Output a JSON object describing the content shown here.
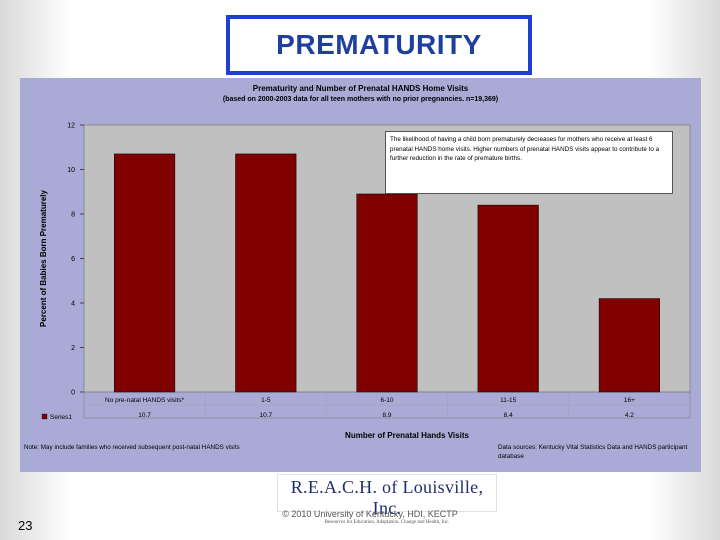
{
  "slide": {
    "title": "PREMATURITY",
    "page_number": "23",
    "copyright": "© 2010 University of Kentucky, HDI, KECTP",
    "logo": {
      "name": "R.E.A.C.H. of Louisville, Inc.",
      "tagline": "Resources for Education, Adaptation, Change and Health, Inc."
    }
  },
  "chart_data": {
    "type": "bar",
    "title": "Prematurity and Number of  Prenatal HANDS Home Visits",
    "subtitle": "(based on 2000-2003 data for all teen mothers with no prior pregnancies. n=19,369)",
    "xlabel": "Number of Prenatal Hands Visits",
    "ylabel": "Percent of Babies Born  Prematurely",
    "categories": [
      "No pre-natal HANDS visits*",
      "1-5",
      "6-10",
      "11-15",
      "16+"
    ],
    "series": [
      {
        "name": "Series1",
        "values": [
          10.7,
          10.7,
          8.9,
          8.4,
          4.2
        ],
        "color": "#800000"
      }
    ],
    "data_labels": [
      "10.7",
      "10.7",
      "8.9",
      "8.4",
      "4.2"
    ],
    "ylim": [
      0,
      12
    ],
    "yticks": [
      0,
      2,
      4,
      6,
      8,
      10,
      12
    ],
    "plot_background": "#c0c0c0",
    "annotation": "The likelihood of having a child born prematurely decreases for mothers who receive at least 6 prenatal HANDS home visits. Higher numbers of prenatal HANDS visits appear to contribute to a further reduction in the rate of premature births.",
    "note_left": "Note: May include families who received subsequent post-natal HANDS visits",
    "note_right": "Data sources: Kentucky Vital Statistics Data and HANDS participant database"
  }
}
